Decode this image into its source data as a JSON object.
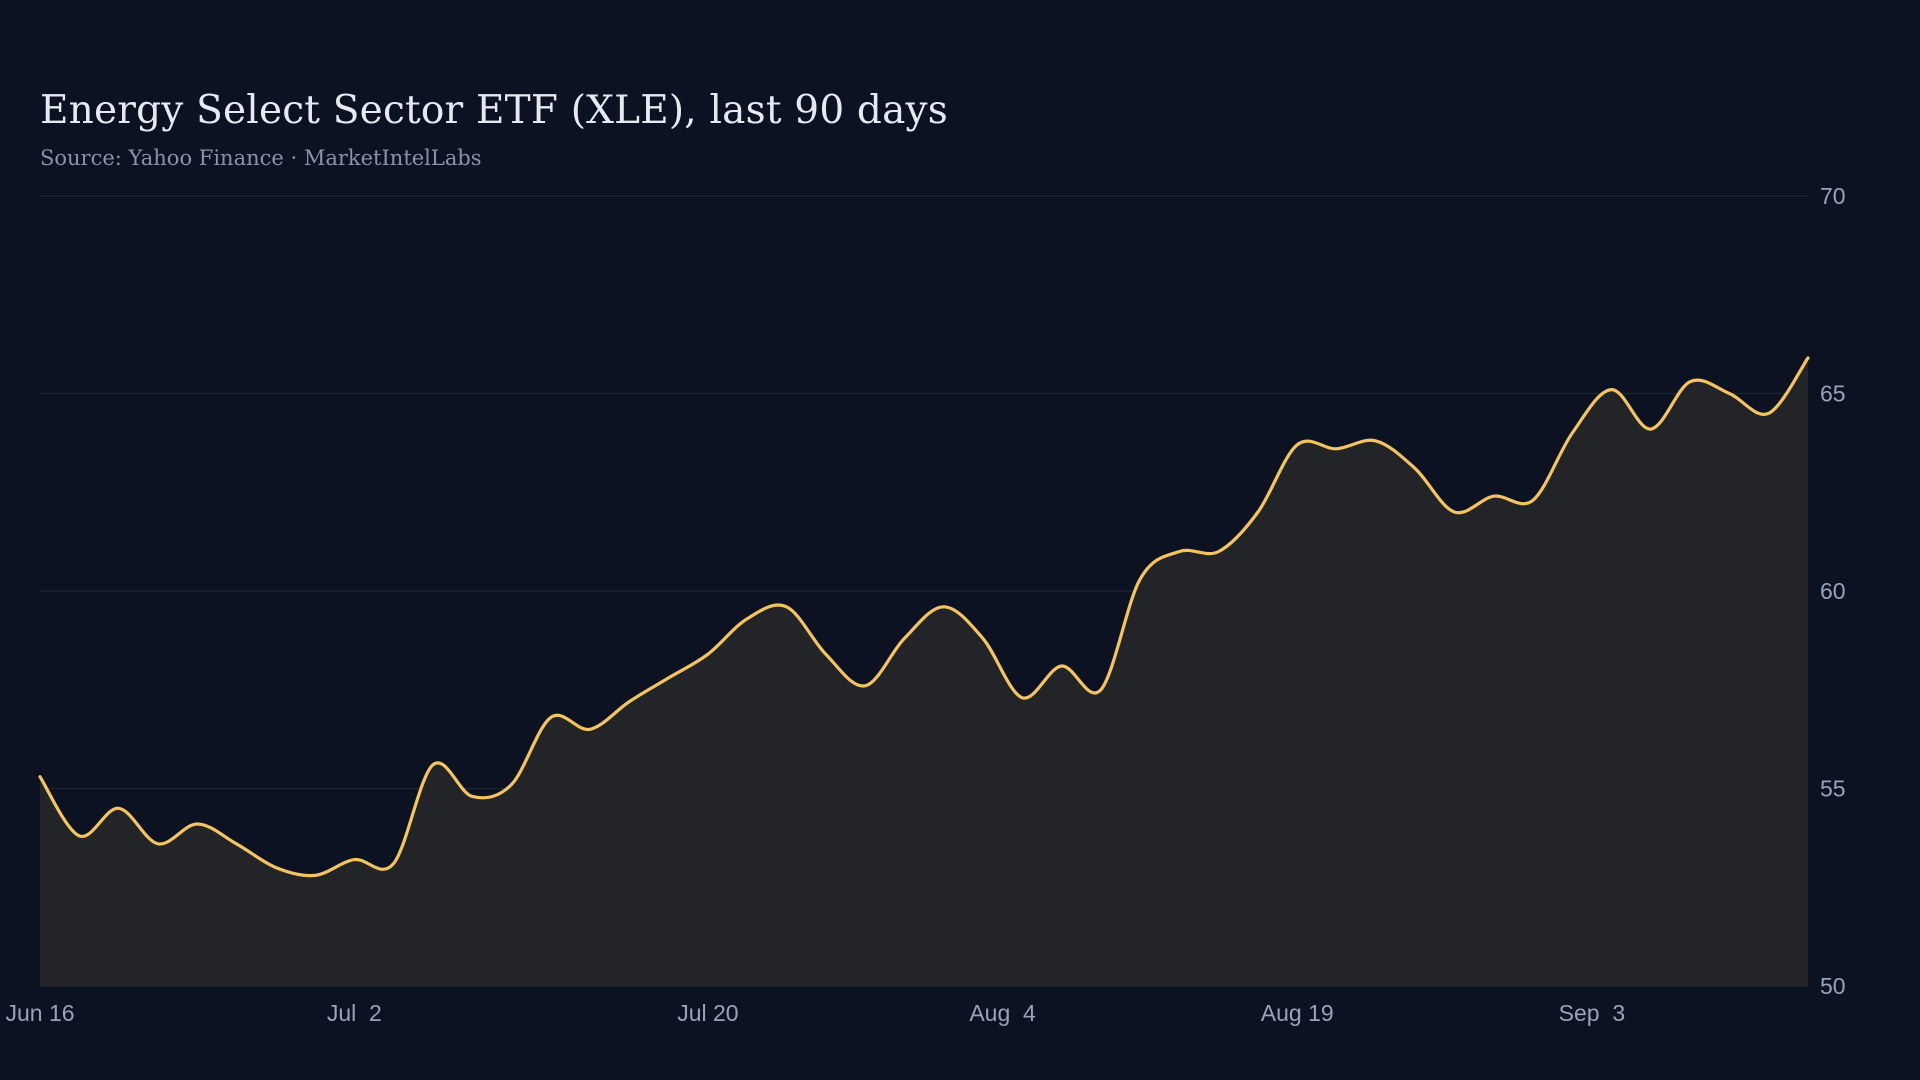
{
  "title": "Energy Select Sector ETF (XLE), last 90 days",
  "subtitle": "Source: Yahoo Finance · MarketIntelLabs",
  "chart_data": {
    "type": "area",
    "title": "Energy Select Sector ETF (XLE), last 90 days",
    "subtitle": "Source: Yahoo Finance · MarketIntelLabs",
    "xlabel": "",
    "ylabel": "",
    "ylim": [
      50,
      70
    ],
    "y_axis_side": "right",
    "y_ticks": [
      50,
      55,
      60,
      65,
      70
    ],
    "x_tick_labels": [
      "Jun 16",
      "Jul  2",
      "Jul 20",
      "Aug  4",
      "Aug 19",
      "Sep  3"
    ],
    "x_tick_dates": [
      "2024-06-16",
      "2024-07-02",
      "2024-07-20",
      "2024-08-04",
      "2024-08-19",
      "2024-09-03"
    ],
    "grid": true,
    "colors": {
      "line": "#f4c460",
      "area": "#232427",
      "grid": "#1d2736",
      "background": "#0c1222"
    },
    "series": [
      {
        "x": [
          "2024-06-16",
          "2024-06-18",
          "2024-06-20",
          "2024-06-22",
          "2024-06-24",
          "2024-06-26",
          "2024-06-28",
          "2024-06-30",
          "2024-07-02",
          "2024-07-04",
          "2024-07-06",
          "2024-07-08",
          "2024-07-10",
          "2024-07-12",
          "2024-07-14",
          "2024-07-16",
          "2024-07-18",
          "2024-07-20",
          "2024-07-22",
          "2024-07-24",
          "2024-07-26",
          "2024-07-28",
          "2024-07-30",
          "2024-08-01",
          "2024-08-03",
          "2024-08-05",
          "2024-08-07",
          "2024-08-09",
          "2024-08-11",
          "2024-08-13",
          "2024-08-15",
          "2024-08-17",
          "2024-08-19",
          "2024-08-21",
          "2024-08-23",
          "2024-08-25",
          "2024-08-27",
          "2024-08-29",
          "2024-08-31",
          "2024-09-02",
          "2024-09-04",
          "2024-09-06",
          "2024-09-08",
          "2024-09-10",
          "2024-09-12",
          "2024-09-14"
        ],
        "values": [
          55.3,
          53.8,
          54.5,
          53.6,
          54.1,
          53.6,
          53.0,
          52.8,
          53.2,
          53.1,
          55.6,
          54.8,
          55.1,
          56.8,
          56.5,
          57.2,
          57.8,
          58.4,
          59.3,
          59.6,
          58.4,
          57.6,
          58.8,
          59.6,
          58.8,
          57.3,
          58.1,
          57.5,
          60.3,
          61.0,
          61.0,
          62.0,
          63.7,
          63.6,
          63.8,
          63.1,
          62.0,
          62.4,
          62.3,
          64.0,
          65.1,
          64.1,
          65.3,
          65.0,
          64.5,
          65.9
        ]
      }
    ]
  }
}
